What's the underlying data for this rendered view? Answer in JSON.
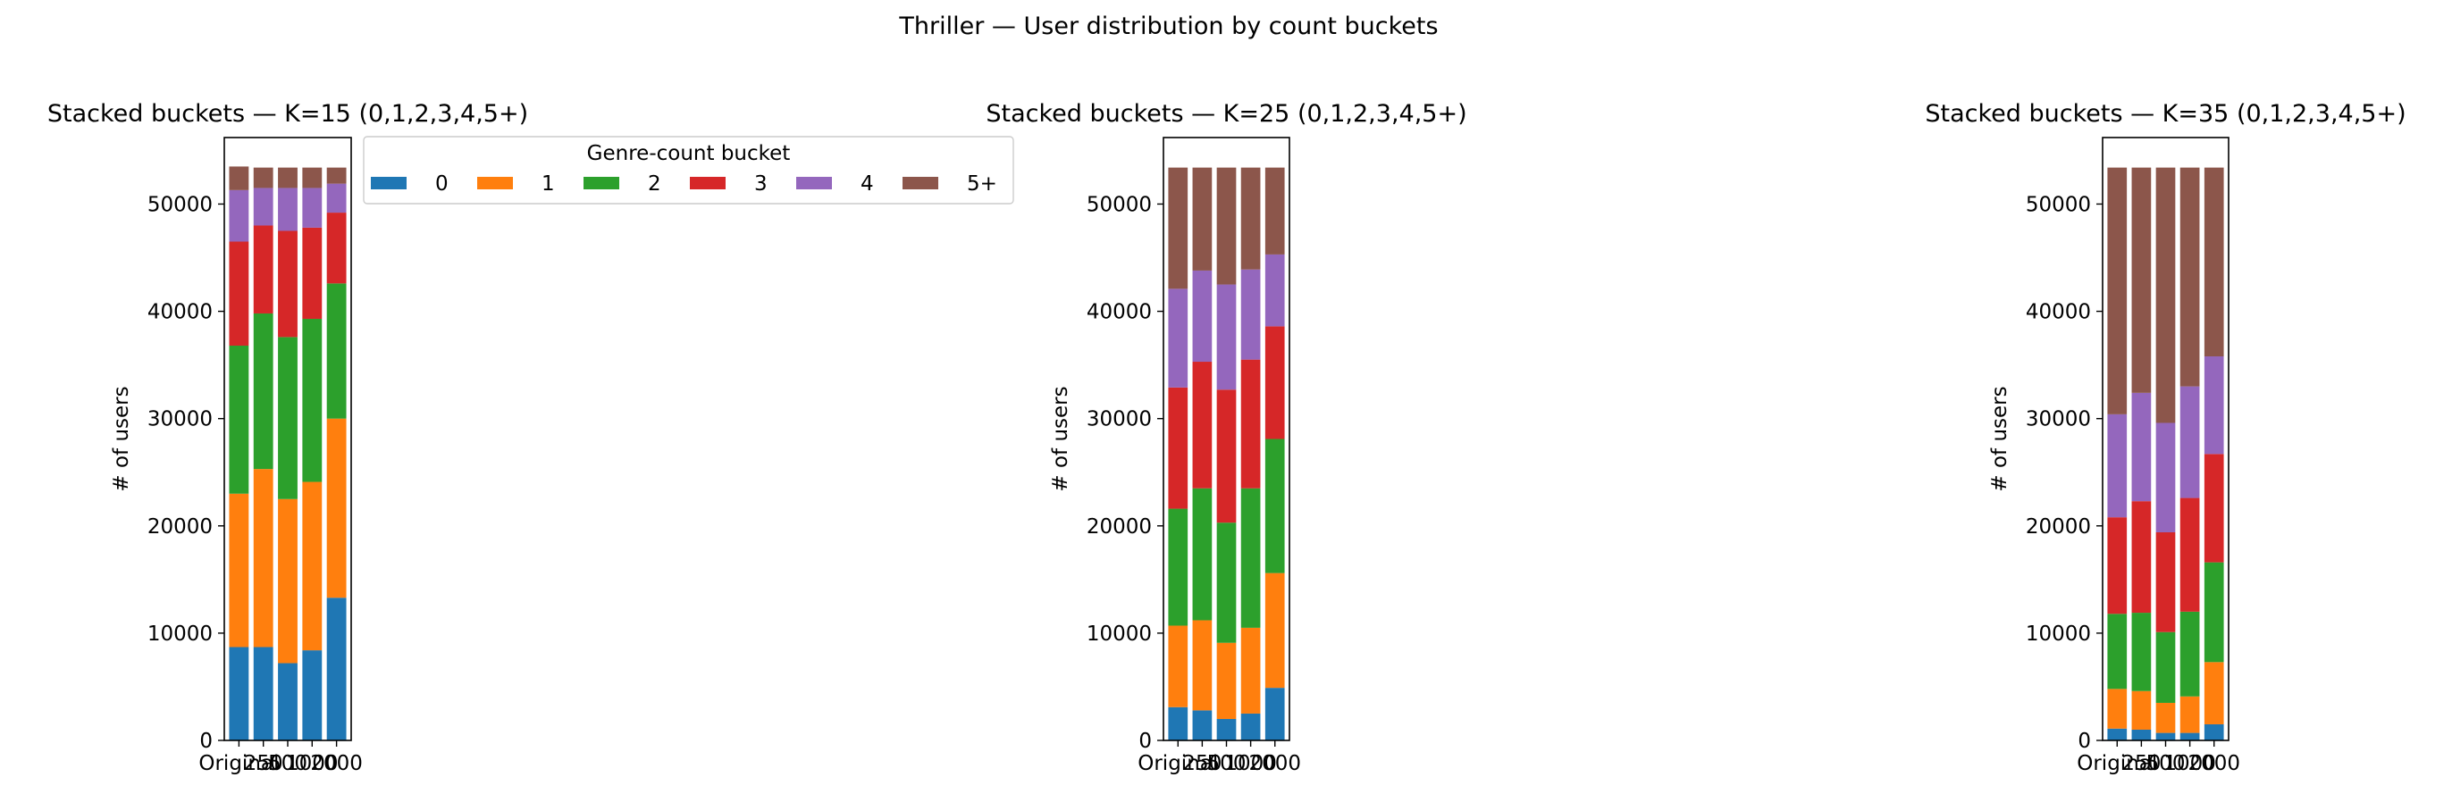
{
  "figure": {
    "suptitle": "Thriller — User distribution by count buckets"
  },
  "legend": {
    "title": "Genre-count bucket",
    "placement": "right of first subplot"
  },
  "colors": {
    "0": "#1f77b4",
    "1": "#ff7f0e",
    "2": "#2ca02c",
    "3": "#d62728",
    "4": "#9467bd",
    "5+": "#8c564b"
  },
  "chart_data": [
    {
      "type": "bar",
      "stacked": true,
      "title": "Stacked buckets — K=15  (0,1,2,3,4,5+)",
      "ylabel": "# of users",
      "categories": [
        "Original",
        "250",
        "500",
        "1000",
        "2000"
      ],
      "yticks": [
        0,
        10000,
        20000,
        30000,
        40000,
        50000
      ],
      "ylim": [
        0,
        56200
      ],
      "series": [
        {
          "name": "0",
          "values": [
            8700,
            8700,
            7200,
            8400,
            13300
          ]
        },
        {
          "name": "1",
          "values": [
            14300,
            16600,
            15300,
            15700,
            16700
          ]
        },
        {
          "name": "2",
          "values": [
            13800,
            14500,
            15100,
            15200,
            12600
          ]
        },
        {
          "name": "3",
          "values": [
            9700,
            8200,
            9900,
            8500,
            6600
          ]
        },
        {
          "name": "4",
          "values": [
            4800,
            3500,
            4000,
            3700,
            2700
          ]
        },
        {
          "name": "5+",
          "values": [
            2200,
            1900,
            1900,
            1900,
            1500
          ]
        }
      ]
    },
    {
      "type": "bar",
      "stacked": true,
      "title": "Stacked buckets — K=25  (0,1,2,3,4,5+)",
      "ylabel": "# of users",
      "categories": [
        "Original",
        "250",
        "500",
        "1000",
        "2000"
      ],
      "yticks": [
        0,
        10000,
        20000,
        30000,
        40000,
        50000
      ],
      "ylim": [
        0,
        56200
      ],
      "series": [
        {
          "name": "0",
          "values": [
            3100,
            2800,
            2000,
            2500,
            4900
          ]
        },
        {
          "name": "1",
          "values": [
            7600,
            8400,
            7100,
            8000,
            10700
          ]
        },
        {
          "name": "2",
          "values": [
            10900,
            12300,
            11200,
            13000,
            12500
          ]
        },
        {
          "name": "3",
          "values": [
            11300,
            11800,
            12400,
            12000,
            10500
          ]
        },
        {
          "name": "4",
          "values": [
            9200,
            8500,
            9800,
            8400,
            6700
          ]
        },
        {
          "name": "5+",
          "values": [
            11300,
            9600,
            10900,
            9500,
            8100
          ]
        }
      ]
    },
    {
      "type": "bar",
      "stacked": true,
      "title": "Stacked buckets — K=35  (0,1,2,3,4,5+)",
      "ylabel": "# of users",
      "categories": [
        "Original",
        "250",
        "500",
        "1000",
        "2000"
      ],
      "yticks": [
        0,
        10000,
        20000,
        30000,
        40000,
        50000
      ],
      "ylim": [
        0,
        56200
      ],
      "series": [
        {
          "name": "0",
          "values": [
            1100,
            1000,
            700,
            700,
            1500
          ]
        },
        {
          "name": "1",
          "values": [
            3700,
            3600,
            2800,
            3400,
            5800
          ]
        },
        {
          "name": "2",
          "values": [
            7000,
            7300,
            6600,
            7900,
            9300
          ]
        },
        {
          "name": "3",
          "values": [
            9000,
            10400,
            9300,
            10600,
            10100
          ]
        },
        {
          "name": "4",
          "values": [
            9600,
            10100,
            10200,
            10400,
            9100
          ]
        },
        {
          "name": "5+",
          "values": [
            23000,
            21000,
            23800,
            20400,
            17600
          ]
        }
      ]
    }
  ]
}
